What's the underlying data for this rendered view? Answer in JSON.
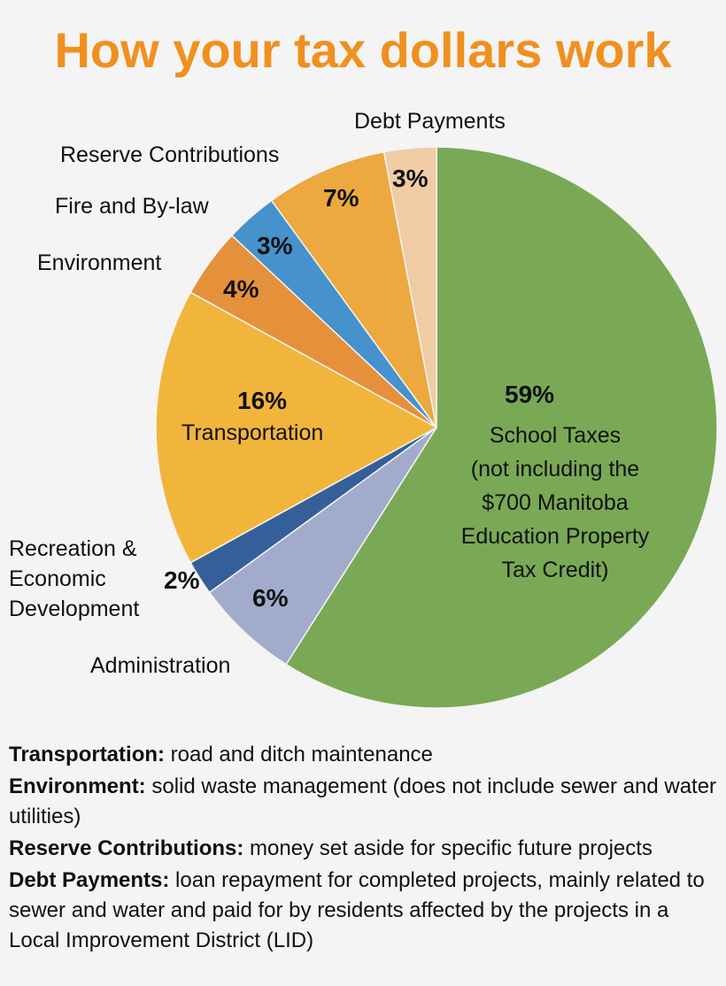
{
  "title": "How your tax dollars work",
  "chart_data": {
    "type": "pie",
    "title": "How your tax dollars work",
    "start": "top, clockwise",
    "slices": [
      {
        "label": "School Taxes (not including the $700 Manitoba Education Property Tax Credit)",
        "value": 59,
        "value_label": "59%",
        "color": "#7aa955"
      },
      {
        "label": "Administration",
        "value": 6,
        "value_label": "6%",
        "color": "#a2abcc"
      },
      {
        "label": "Recreation & Economic Development",
        "value": 2,
        "value_label": "2%",
        "color": "#355f98"
      },
      {
        "label": "Transportation",
        "value": 16,
        "value_label": "16%",
        "color": "#f2b53c"
      },
      {
        "label": "Environment",
        "value": 4,
        "value_label": "4%",
        "color": "#e5913c"
      },
      {
        "label": "Fire and By-law",
        "value": 3,
        "value_label": "3%",
        "color": "#4592cc"
      },
      {
        "label": "Reserve Contributions",
        "value": 7,
        "value_label": "7%",
        "color": "#eda83f"
      },
      {
        "label": "Debt Payments",
        "value": 3,
        "value_label": "3%",
        "color": "#efcca4"
      }
    ]
  },
  "labels": {
    "debt": "Debt Payments",
    "reserve": "Reserve Contributions",
    "fire": "Fire and By-law",
    "environment": "Environment",
    "recreation": [
      "Recreation &",
      "Economic",
      "Development"
    ],
    "administration": "Administration",
    "transportation": "Transportation",
    "school": [
      "School Taxes",
      "(not including the",
      "$700 Manitoba",
      "Education Property",
      "Tax Credit)"
    ]
  },
  "notes": [
    {
      "term": "Transportation:",
      "text": "  road and ditch maintenance"
    },
    {
      "term": "Environment:",
      "text": " solid waste management (does not include sewer and water utilities)"
    },
    {
      "term": "Reserve Contributions:",
      "text": " money set aside for specific future projects"
    },
    {
      "term": "Debt Payments:",
      "text": " loan repayment for completed projects, mainly related to sewer and water and paid for by residents affected by the projects in a Local Improvement District (LID)"
    }
  ]
}
